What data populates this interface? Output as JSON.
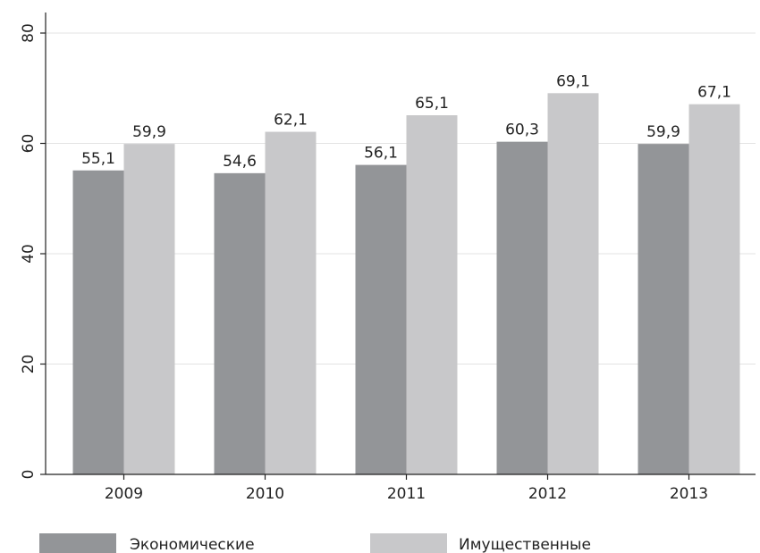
{
  "chart_data": {
    "type": "bar",
    "categories": [
      "2009",
      "2010",
      "2011",
      "2012",
      "2013"
    ],
    "series": [
      {
        "name": "Экономические",
        "values": [
          55.1,
          54.6,
          56.1,
          60.3,
          59.9
        ],
        "labels": [
          "55,1",
          "54,6",
          "56,1",
          "60,3",
          "59,9"
        ],
        "color": "#939598"
      },
      {
        "name": "Имущественные",
        "values": [
          59.9,
          62.1,
          65.1,
          69.1,
          67.1
        ],
        "labels": [
          "59,9",
          "62,1",
          "65,1",
          "69,1",
          "67,1"
        ],
        "color": "#c8c8ca"
      }
    ],
    "ylim": [
      0,
      80
    ],
    "yticks": [
      "0",
      "20",
      "40",
      "60",
      "80"
    ],
    "title": "",
    "xlabel": "",
    "ylabel": "",
    "grid": true,
    "legend_position": "bottom"
  }
}
